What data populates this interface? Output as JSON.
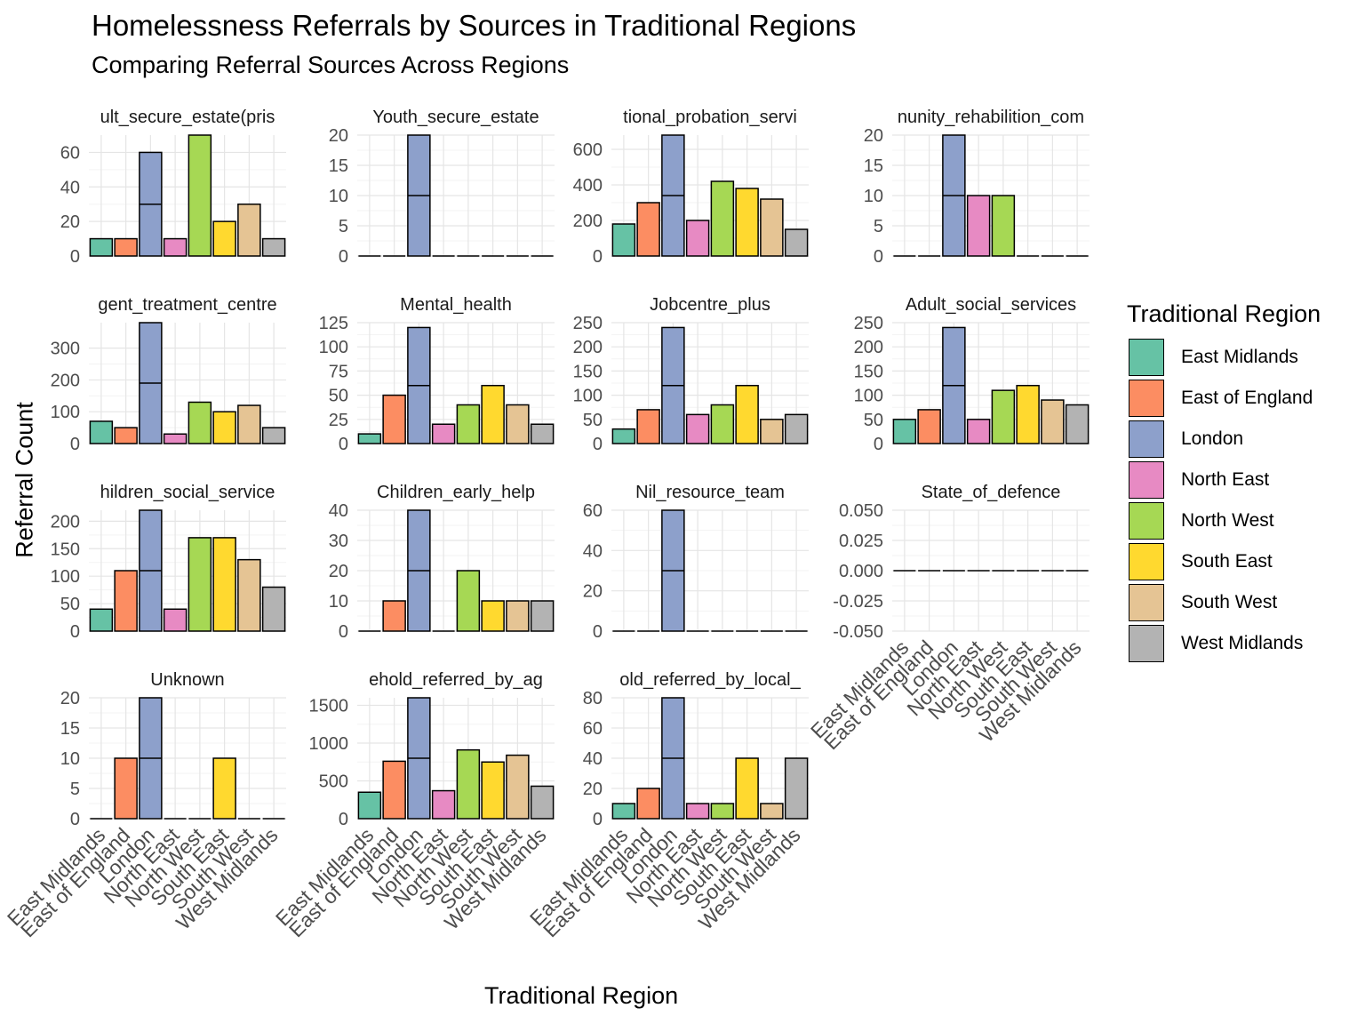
{
  "title": "Homelessness Referrals by Sources in Traditional Regions",
  "subtitle": "Comparing Referral Sources Across Regions",
  "chart_data": {
    "type": "bar",
    "title": "Homelessness Referrals by Sources in Traditional Regions",
    "subtitle": "Comparing Referral Sources Across Regions",
    "xlabel": "Traditional Region",
    "ylabel": "Referral Count",
    "legend_title": "Traditional Region",
    "legend_position": "right",
    "grid": true,
    "categories": [
      "East Midlands",
      "East of England",
      "London",
      "North East",
      "North West",
      "South East",
      "South West",
      "West Midlands"
    ],
    "colors": [
      "#66C2A5",
      "#FC8D62",
      "#8DA0CB",
      "#E78AC3",
      "#A6D854",
      "#FFD92F",
      "#E5C494",
      "#B3B3B3"
    ],
    "facets": [
      {
        "strip": "ult_secure_estate(pris",
        "values": [
          10,
          10,
          60,
          10,
          70,
          20,
          30,
          10
        ],
        "ylim": [
          0,
          70
        ],
        "ticks": [
          0,
          20,
          40,
          60
        ],
        "tick_labels": [
          "0",
          "20",
          "40",
          "60"
        ]
      },
      {
        "strip": "Youth_secure_estate",
        "values": [
          0,
          0,
          20,
          0,
          0,
          0,
          0,
          0
        ],
        "ylim": [
          0,
          20
        ],
        "ticks": [
          0,
          5,
          10,
          15,
          20
        ],
        "tick_labels": [
          "0",
          "5",
          "10",
          "15",
          "20"
        ]
      },
      {
        "strip": "tional_probation_servi",
        "values": [
          180,
          300,
          680,
          200,
          420,
          380,
          320,
          150
        ],
        "ylim": [
          0,
          680
        ],
        "ticks": [
          0,
          200,
          400,
          600
        ],
        "tick_labels": [
          "0",
          "200",
          "400",
          "600"
        ]
      },
      {
        "strip": "nunity_rehabilition_com",
        "values": [
          0,
          0,
          20,
          10,
          10,
          0,
          0,
          0
        ],
        "ylim": [
          0,
          20
        ],
        "ticks": [
          0,
          5,
          10,
          15,
          20
        ],
        "tick_labels": [
          "0",
          "5",
          "10",
          "15",
          "20"
        ]
      },
      {
        "strip": "gent_treatment_centre",
        "values": [
          70,
          50,
          380,
          30,
          130,
          100,
          120,
          50
        ],
        "ylim": [
          0,
          380
        ],
        "ticks": [
          0,
          100,
          200,
          300
        ],
        "tick_labels": [
          "0",
          "100",
          "200",
          "300"
        ]
      },
      {
        "strip": "Mental_health",
        "values": [
          10,
          50,
          120,
          20,
          40,
          60,
          40,
          20
        ],
        "ylim": [
          0,
          125
        ],
        "ticks": [
          0,
          25,
          50,
          75,
          100,
          125
        ],
        "tick_labels": [
          "0",
          "25",
          "50",
          "75",
          "100",
          "125"
        ]
      },
      {
        "strip": "Jobcentre_plus",
        "values": [
          30,
          70,
          240,
          60,
          80,
          120,
          50,
          60
        ],
        "ylim": [
          0,
          250
        ],
        "ticks": [
          0,
          50,
          100,
          150,
          200,
          250
        ],
        "tick_labels": [
          "0",
          "50",
          "100",
          "150",
          "200",
          "250"
        ]
      },
      {
        "strip": "Adult_social_services",
        "values": [
          50,
          70,
          240,
          50,
          110,
          120,
          90,
          80
        ],
        "ylim": [
          0,
          250
        ],
        "ticks": [
          0,
          50,
          100,
          150,
          200,
          250
        ],
        "tick_labels": [
          "0",
          "50",
          "100",
          "150",
          "200",
          "250"
        ]
      },
      {
        "strip": "hildren_social_service",
        "values": [
          40,
          110,
          220,
          40,
          170,
          170,
          130,
          80
        ],
        "ylim": [
          0,
          220
        ],
        "ticks": [
          0,
          50,
          100,
          150,
          200
        ],
        "tick_labels": [
          "0",
          "50",
          "100",
          "150",
          "200"
        ]
      },
      {
        "strip": "Children_early_help",
        "values": [
          0,
          10,
          40,
          0,
          20,
          10,
          10,
          10
        ],
        "ylim": [
          0,
          40
        ],
        "ticks": [
          0,
          10,
          20,
          30,
          40
        ],
        "tick_labels": [
          "0",
          "10",
          "20",
          "30",
          "40"
        ]
      },
      {
        "strip": "Nil_resource_team",
        "values": [
          0,
          0,
          60,
          0,
          0,
          0,
          0,
          0
        ],
        "ylim": [
          0,
          60
        ],
        "ticks": [
          0,
          20,
          40,
          60
        ],
        "tick_labels": [
          "0",
          "20",
          "40",
          "60"
        ]
      },
      {
        "strip": "State_of_defence",
        "values": [
          0,
          0,
          0,
          0,
          0,
          0,
          0,
          0
        ],
        "ylim": [
          -0.05,
          0.05
        ],
        "ticks": [
          -0.05,
          -0.025,
          0,
          0.025,
          0.05
        ],
        "tick_labels": [
          "-0.050",
          "-0.025",
          "0.000",
          "0.025",
          "0.050"
        ]
      },
      {
        "strip": "Unknown",
        "values": [
          0,
          10,
          20,
          0,
          0,
          10,
          0,
          0
        ],
        "ylim": [
          0,
          20
        ],
        "ticks": [
          0,
          5,
          10,
          15,
          20
        ],
        "tick_labels": [
          "0",
          "5",
          "10",
          "15",
          "20"
        ]
      },
      {
        "strip": "ehold_referred_by_ag",
        "values": [
          350,
          760,
          1600,
          370,
          910,
          750,
          840,
          430
        ],
        "ylim": [
          0,
          1600
        ],
        "ticks": [
          0,
          500,
          1000,
          1500
        ],
        "tick_labels": [
          "0",
          "500",
          "1000",
          "1500"
        ]
      },
      {
        "strip": "old_referred_by_local_",
        "values": [
          10,
          20,
          80,
          10,
          10,
          40,
          10,
          40
        ],
        "ylim": [
          0,
          80
        ],
        "ticks": [
          0,
          20,
          40,
          60,
          80
        ],
        "tick_labels": [
          "0",
          "20",
          "40",
          "60",
          "80"
        ]
      }
    ]
  }
}
